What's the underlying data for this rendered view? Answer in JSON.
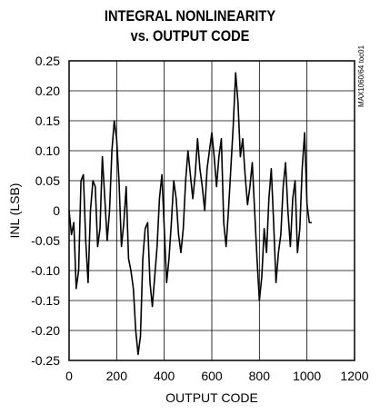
{
  "chart_data": {
    "type": "line",
    "title_line1": "INTEGRAL NONLINEARITY",
    "title_line2": "vs. OUTPUT CODE",
    "xlabel": "OUTPUT CODE",
    "ylabel": "INL (LSB)",
    "side_note": "MAX1060/64 toc01",
    "xlim": [
      0,
      1200
    ],
    "ylim": [
      -0.25,
      0.25
    ],
    "x_ticks": [
      "0",
      "200",
      "400",
      "600",
      "800",
      "1000",
      "1200"
    ],
    "y_ticks": [
      "0.25",
      "0.20",
      "0.15",
      "0.10",
      "0.05",
      "0",
      "-0.05",
      "-0.10",
      "-0.15",
      "-0.20",
      "-0.25"
    ],
    "grid": true,
    "series": [
      {
        "color": "#000000",
        "x": [
          0,
          10,
          20,
          30,
          40,
          50,
          60,
          70,
          80,
          90,
          100,
          110,
          120,
          130,
          140,
          150,
          160,
          170,
          180,
          190,
          200,
          210,
          220,
          230,
          240,
          250,
          260,
          270,
          280,
          290,
          300,
          310,
          320,
          330,
          340,
          350,
          360,
          370,
          380,
          390,
          400,
          410,
          420,
          430,
          440,
          450,
          460,
          470,
          480,
          490,
          500,
          510,
          520,
          530,
          540,
          550,
          560,
          570,
          580,
          590,
          600,
          610,
          620,
          630,
          640,
          650,
          660,
          670,
          680,
          690,
          700,
          710,
          720,
          730,
          740,
          750,
          760,
          770,
          780,
          790,
          800,
          810,
          820,
          830,
          840,
          850,
          860,
          870,
          880,
          890,
          900,
          910,
          920,
          930,
          940,
          950,
          960,
          970,
          980,
          990,
          1000,
          1010,
          1020
        ],
        "y": [
          0.0,
          -0.04,
          -0.02,
          -0.13,
          -0.1,
          0.05,
          0.06,
          -0.05,
          -0.12,
          0.0,
          0.05,
          0.04,
          -0.06,
          -0.03,
          0.09,
          0.02,
          -0.05,
          0.0,
          0.1,
          0.15,
          0.12,
          0.05,
          -0.06,
          -0.02,
          0.04,
          -0.08,
          -0.1,
          -0.13,
          -0.2,
          -0.24,
          -0.21,
          -0.08,
          -0.03,
          -0.02,
          -0.12,
          -0.16,
          -0.11,
          -0.06,
          0.02,
          0.06,
          -0.03,
          -0.12,
          -0.08,
          -0.02,
          0.05,
          0.02,
          -0.04,
          -0.07,
          -0.03,
          0.05,
          0.1,
          0.06,
          0.02,
          0.06,
          0.12,
          0.07,
          0.04,
          0.0,
          0.07,
          0.1,
          0.13,
          0.09,
          0.04,
          0.09,
          0.12,
          -0.02,
          -0.06,
          0.0,
          0.07,
          0.14,
          0.23,
          0.18,
          0.09,
          0.12,
          0.06,
          0.01,
          0.04,
          0.08,
          0.0,
          -0.08,
          -0.15,
          -0.11,
          -0.03,
          -0.07,
          0.02,
          0.07,
          -0.02,
          -0.12,
          -0.07,
          -0.04,
          0.04,
          0.08,
          0.0,
          -0.06,
          0.02,
          0.05,
          -0.07,
          -0.03,
          0.07,
          0.13,
          0.01,
          -0.02,
          -0.02
        ]
      }
    ]
  }
}
